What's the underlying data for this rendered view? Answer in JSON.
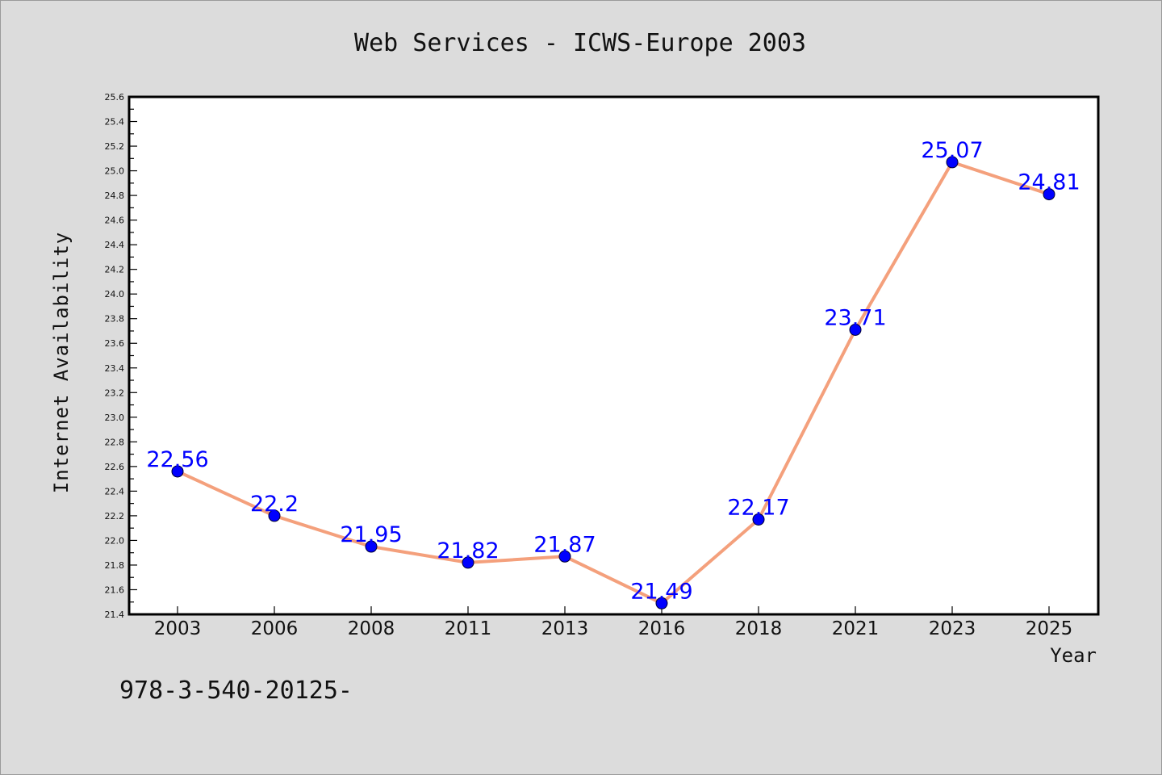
{
  "chart_data": {
    "type": "line",
    "title": "Web Services - ICWS-Europe 2003",
    "xlabel": "Year",
    "ylabel": "Internet Availability",
    "categories": [
      "2003",
      "2006",
      "2008",
      "2011",
      "2013",
      "2016",
      "2018",
      "2021",
      "2023",
      "2025"
    ],
    "series": [
      {
        "values": [
          22.56,
          22.2,
          21.95,
          21.82,
          21.87,
          21.49,
          22.17,
          23.71,
          25.07,
          24.81
        ],
        "data_labels": [
          "22.56",
          "22.2",
          "21.95",
          "21.82",
          "21.87",
          "21.49",
          "22.17",
          "23.71",
          "25.07",
          "24.81"
        ]
      }
    ],
    "ylim": [
      21.4,
      25.6
    ],
    "yticks": [
      "21.4",
      "21.6",
      "21.8",
      "22.0",
      "22.2",
      "22.4",
      "22.6",
      "22.8",
      "23.0",
      "23.2",
      "23.4",
      "23.6",
      "23.8",
      "24.0",
      "24.2",
      "24.4",
      "24.6",
      "24.8",
      "25.0",
      "25.2",
      "25.4",
      "25.6"
    ],
    "grid": false,
    "colors": {
      "background": "#dcdcdc",
      "plot_background": "#ffffff",
      "line": "#f4a07c",
      "marker": "#0000ff",
      "data_label": "#0000ff"
    }
  },
  "footnote": "978-3-540-20125-"
}
